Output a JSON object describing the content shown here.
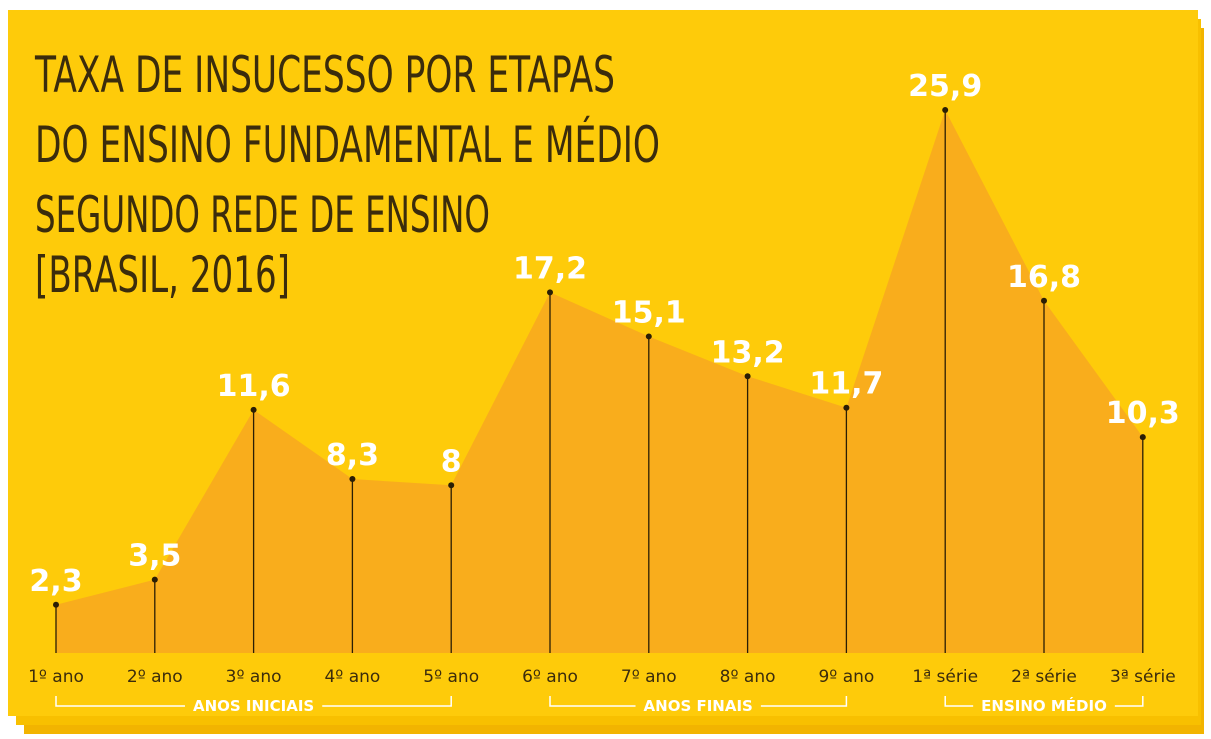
{
  "chart_data": {
    "type": "area",
    "title": [
      "TAXA DE INSUCESSO POR ETAPAS",
      "DO ENSINO FUNDAMENTAL E MÉDIO",
      "SEGUNDO REDE DE ENSINO",
      "[BRASIL, 2016]"
    ],
    "categories": [
      "1º ano",
      "2º ano",
      "3º ano",
      "4º ano",
      "5º ano",
      "6º ano",
      "7º ano",
      "8º ano",
      "9º ano",
      "1ª série",
      "2ª série",
      "3ª série"
    ],
    "values": [
      2.3,
      3.5,
      11.6,
      8.3,
      8,
      17.2,
      15.1,
      13.2,
      11.7,
      25.9,
      16.8,
      10.3
    ],
    "value_labels": [
      "2,3",
      "3,5",
      "11,6",
      "8,3",
      "8",
      "17,2",
      "15,1",
      "13,2",
      "11,7",
      "25,9",
      "16,8",
      "10,3"
    ],
    "groups": [
      {
        "name": "ANOS INICIAIS",
        "first": 0,
        "last": 4
      },
      {
        "name": "ANOS FINAIS",
        "first": 5,
        "last": 8
      },
      {
        "name": "ENSINO MÉDIO",
        "first": 9,
        "last": 11
      }
    ],
    "color": "#f9ad1c",
    "ylim": [
      0,
      28
    ]
  }
}
